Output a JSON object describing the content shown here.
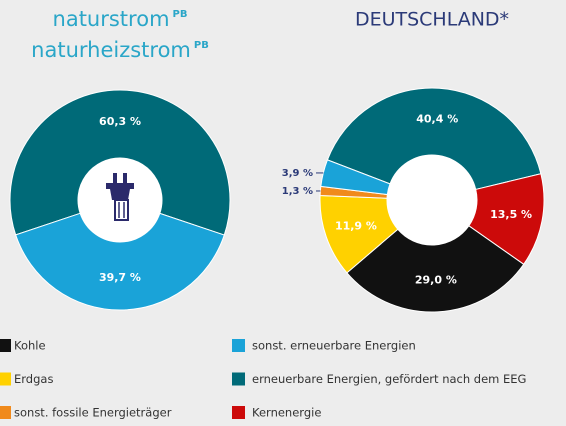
{
  "chart_data": [
    {
      "type": "donut",
      "title": [
        "naturstrom",
        "naturheizstrom"
      ],
      "title_superscript": "PB",
      "categories": [
        "erneuerbare Energien, gefördert nach dem EEG",
        "sonst. erneuerbare Energien"
      ],
      "values": [
        60.3,
        39.7
      ],
      "value_labels": [
        "60,3 %",
        "39,7 %"
      ],
      "colors": [
        "#006a78",
        "#1aa3d8"
      ]
    },
    {
      "type": "donut",
      "title": "DEUTSCHLAND*",
      "categories": [
        "erneuerbare Energien, gefördert nach dem EEG",
        "Kernenergie",
        "Kohle",
        "Erdgas",
        "sonst. fossile Energieträger",
        "sonst. erneuerbare Energien"
      ],
      "values": [
        40.4,
        13.5,
        29.0,
        11.9,
        1.3,
        3.9
      ],
      "value_labels": [
        "40,4 %",
        "13,5 %",
        "29,0 %",
        "11,9 %",
        "1,3 %",
        "3,9 %"
      ],
      "colors": [
        "#006a78",
        "#cc0a0a",
        "#111111",
        "#ffd100",
        "#f08a1c",
        "#1aa3d8"
      ]
    }
  ],
  "legend": [
    {
      "name": "Kohle",
      "color": "#111111"
    },
    {
      "name": "Erdgas",
      "color": "#ffd100"
    },
    {
      "name": "sonst. fossile Energieträger",
      "color": "#f08a1c"
    },
    {
      "name": "sonst. erneuerbare Energien",
      "color": "#1aa3d8"
    },
    {
      "name": "erneuerbare Energien, gefördert nach dem EEG",
      "color": "#006a78"
    },
    {
      "name": "Kernenergie",
      "color": "#cc0a0a"
    }
  ]
}
